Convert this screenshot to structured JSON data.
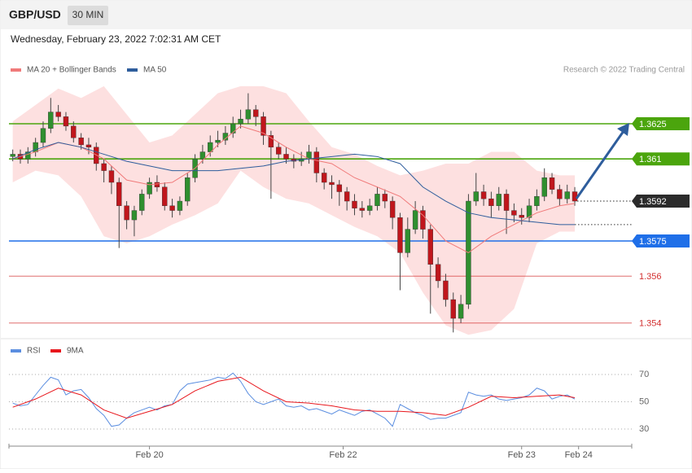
{
  "header": {
    "symbol": "GBP/USD",
    "timeframe": "30 MIN",
    "timestamp": "Wednesday, February 23, 2022 7:02:31 AM CET"
  },
  "chart_data": [
    {
      "type": "candlestick",
      "source": "Research © 2022 Trading Central",
      "xlim": [
        -0.5,
        81.5
      ],
      "ylim": [
        1.3535,
        1.3645
      ],
      "candles": {
        "up_color": "#2f8f2f",
        "down_color": "#c0161c",
        "open": [
          1.3611,
          1.3612,
          1.361,
          1.3613,
          1.3617,
          1.3623,
          1.363,
          1.3628,
          1.3624,
          1.3619,
          1.3616,
          1.3615,
          1.3608,
          1.3605,
          1.36,
          1.359,
          1.3584,
          1.3588,
          1.3595,
          1.36,
          1.3598,
          1.359,
          1.3588,
          1.3592,
          1.3602,
          1.361,
          1.3613,
          1.3617,
          1.3618,
          1.3621,
          1.3625,
          1.3627,
          1.3631,
          1.3628,
          1.362,
          1.3615,
          1.3612,
          1.361,
          1.3609,
          1.361,
          1.3613,
          1.3604,
          1.36,
          1.3599,
          1.3596,
          1.3592,
          1.3589,
          1.3588,
          1.359,
          1.3595,
          1.3592,
          1.3585,
          1.357,
          1.358,
          1.3588,
          1.358,
          1.3565,
          1.3558,
          1.355,
          1.3542,
          1.3548,
          1.3592,
          1.3596,
          1.3593,
          1.359,
          1.3595,
          1.3588,
          1.3586,
          1.3585,
          1.359,
          1.3594,
          1.3602,
          1.3597,
          1.3593,
          1.3596
        ],
        "high": [
          1.3614,
          1.3614,
          1.3615,
          1.3619,
          1.3626,
          1.3636,
          1.3633,
          1.363,
          1.3626,
          1.3621,
          1.3619,
          1.3617,
          1.361,
          1.3607,
          1.3602,
          1.3592,
          1.359,
          1.3597,
          1.3602,
          1.3603,
          1.36,
          1.3593,
          1.3594,
          1.3604,
          1.3612,
          1.3616,
          1.362,
          1.3622,
          1.3624,
          1.3628,
          1.3631,
          1.3638,
          1.3633,
          1.363,
          1.3622,
          1.3617,
          1.3615,
          1.3612,
          1.3613,
          1.3616,
          1.3615,
          1.3606,
          1.3603,
          1.3601,
          1.3598,
          1.3595,
          1.3592,
          1.3593,
          1.3598,
          1.3597,
          1.3594,
          1.3587,
          1.3585,
          1.3592,
          1.359,
          1.3582,
          1.3568,
          1.3561,
          1.3553,
          1.3552,
          1.3595,
          1.3604,
          1.3599,
          1.3596,
          1.3598,
          1.3597,
          1.3591,
          1.3589,
          1.3593,
          1.3597,
          1.3606,
          1.3604,
          1.3599,
          1.3599,
          1.3598
        ],
        "low": [
          1.3609,
          1.3608,
          1.3608,
          1.3611,
          1.3615,
          1.3621,
          1.3626,
          1.3622,
          1.3617,
          1.3614,
          1.3612,
          1.3605,
          1.36,
          1.3595,
          1.3572,
          1.358,
          1.3577,
          1.3586,
          1.3593,
          1.3596,
          1.3588,
          1.3585,
          1.3586,
          1.359,
          1.36,
          1.3608,
          1.3611,
          1.3615,
          1.3616,
          1.3619,
          1.3623,
          1.3625,
          1.3624,
          1.3616,
          1.3593,
          1.361,
          1.3608,
          1.3606,
          1.3607,
          1.3608,
          1.36,
          1.3597,
          1.3593,
          1.359,
          1.3588,
          1.3586,
          1.3585,
          1.3586,
          1.3588,
          1.3589,
          1.358,
          1.3554,
          1.3568,
          1.3578,
          1.3576,
          1.3544,
          1.3555,
          1.3547,
          1.3536,
          1.354,
          1.3546,
          1.359,
          1.359,
          1.3585,
          1.3588,
          1.3578,
          1.3583,
          1.3582,
          1.3583,
          1.3588,
          1.3592,
          1.3595,
          1.359,
          1.3591,
          1.359
        ],
        "close": [
          1.3612,
          1.361,
          1.3613,
          1.3617,
          1.3623,
          1.363,
          1.3628,
          1.3624,
          1.3619,
          1.3616,
          1.3615,
          1.3608,
          1.3605,
          1.36,
          1.359,
          1.3584,
          1.3588,
          1.3595,
          1.36,
          1.3598,
          1.359,
          1.3588,
          1.3592,
          1.3602,
          1.361,
          1.3613,
          1.3617,
          1.3618,
          1.3621,
          1.3625,
          1.3627,
          1.3631,
          1.3628,
          1.362,
          1.3615,
          1.3612,
          1.361,
          1.3609,
          1.361,
          1.3613,
          1.3604,
          1.36,
          1.3599,
          1.3596,
          1.3592,
          1.3589,
          1.3588,
          1.359,
          1.3595,
          1.3592,
          1.3585,
          1.357,
          1.358,
          1.3588,
          1.358,
          1.3565,
          1.3558,
          1.355,
          1.3542,
          1.3548,
          1.3592,
          1.3596,
          1.3593,
          1.359,
          1.3595,
          1.3588,
          1.3586,
          1.3585,
          1.359,
          1.3594,
          1.3602,
          1.3597,
          1.3593,
          1.3596,
          1.3592
        ]
      },
      "indicator_x": [
        0,
        3,
        6,
        9,
        12,
        15,
        18,
        21,
        24,
        27,
        30,
        33,
        36,
        39,
        42,
        45,
        48,
        51,
        54,
        57,
        60,
        63,
        66,
        69,
        72,
        74
      ],
      "series": [
        {
          "name": "MA 20 + Bollinger Bands",
          "color": "#f07a7a",
          "band_color": "#fde0e0",
          "values": [
            1.361,
            1.3613,
            1.3617,
            1.3615,
            1.361,
            1.3601,
            1.3599,
            1.36,
            1.3606,
            1.3616,
            1.3624,
            1.3621,
            1.3615,
            1.361,
            1.3608,
            1.3602,
            1.3598,
            1.3594,
            1.3586,
            1.3575,
            1.357,
            1.3577,
            1.3582,
            1.3587,
            1.359,
            1.3591
          ],
          "upper": [
            1.3626,
            1.3633,
            1.364,
            1.3636,
            1.3641,
            1.3629,
            1.3617,
            1.362,
            1.3629,
            1.3638,
            1.3641,
            1.3641,
            1.3638,
            1.3626,
            1.3615,
            1.3612,
            1.3607,
            1.3603,
            1.3605,
            1.3608,
            1.3608,
            1.3613,
            1.3613,
            1.3605,
            1.3603,
            1.3603
          ],
          "lower": [
            1.36,
            1.3605,
            1.3603,
            1.3594,
            1.3577,
            1.3574,
            1.3577,
            1.3582,
            1.3586,
            1.3591,
            1.3605,
            1.3598,
            1.3593,
            1.3591,
            1.3586,
            1.3581,
            1.3577,
            1.357,
            1.3553,
            1.3539,
            1.3535,
            1.3537,
            1.3546,
            1.3574,
            1.3579,
            1.3579
          ]
        },
        {
          "name": "MA 50",
          "color": "#2e5d9c",
          "values": [
            1.361,
            1.3614,
            1.3617,
            1.3615,
            1.3612,
            1.3609,
            1.3607,
            1.3605,
            1.3605,
            1.3605,
            1.3606,
            1.3607,
            1.3609,
            1.361,
            1.3611,
            1.3612,
            1.3611,
            1.3608,
            1.3598,
            1.3592,
            1.3587,
            1.3585,
            1.3584,
            1.3583,
            1.3582,
            1.3582
          ]
        }
      ],
      "levels": [
        {
          "price": 1.3625,
          "color": "#4ba50d",
          "line": "solid",
          "label_style": "box"
        },
        {
          "price": 1.361,
          "color": "#4ba50d",
          "line": "solid",
          "label_style": "box"
        },
        {
          "price": 1.3592,
          "color": "#2b2b2b",
          "line": "dotted",
          "label_style": "box"
        },
        {
          "price": 1.3575,
          "color": "#1f6fe8",
          "line": "solid",
          "label_style": "box"
        },
        {
          "price": 1.356,
          "color": "#d32f2f",
          "line": "thin",
          "label_style": "text"
        },
        {
          "price": 1.354,
          "color": "#d32f2f",
          "line": "thin",
          "label_style": "text"
        }
      ]
    },
    {
      "type": "line",
      "xlim": [
        -0.5,
        81.5
      ],
      "ylim": [
        20,
        80
      ],
      "yticks": [
        30,
        50,
        70
      ],
      "grid": "dotted",
      "xticks": [
        {
          "value": 18,
          "label": "Feb 20"
        },
        {
          "value": 43.5,
          "label": "Feb 22"
        },
        {
          "value": 67,
          "label": "Feb 23"
        },
        {
          "value": 74.5,
          "label": "Feb 24"
        }
      ],
      "series": [
        {
          "name": "RSI",
          "color": "#5b8ee0",
          "x": [
            0,
            1,
            2,
            3,
            4,
            5,
            6,
            7,
            8,
            9,
            10,
            11,
            12,
            13,
            14,
            15,
            16,
            17,
            18,
            19,
            20,
            21,
            22,
            23,
            24,
            25,
            26,
            27,
            28,
            29,
            30,
            31,
            32,
            33,
            34,
            35,
            36,
            37,
            38,
            39,
            40,
            41,
            42,
            43,
            44,
            45,
            46,
            47,
            48,
            49,
            50,
            51,
            52,
            53,
            54,
            55,
            56,
            57,
            58,
            59,
            60,
            61,
            62,
            63,
            64,
            65,
            66,
            67,
            68,
            69,
            70,
            71,
            72,
            73,
            74
          ],
          "values": [
            49,
            47,
            48,
            55,
            62,
            68,
            66,
            55,
            58,
            59,
            53,
            45,
            40,
            32,
            33,
            38,
            42,
            44,
            46,
            44,
            47,
            48,
            58,
            63,
            64,
            65,
            66,
            68,
            67,
            71,
            65,
            56,
            50,
            48,
            50,
            52,
            47,
            46,
            47,
            44,
            45,
            43,
            41,
            44,
            42,
            40,
            43,
            44,
            41,
            38,
            32,
            48,
            45,
            42,
            40,
            37,
            38,
            38,
            40,
            42,
            57,
            55,
            54,
            55,
            52,
            51,
            52,
            53,
            55,
            60,
            58,
            52,
            54,
            55,
            52
          ]
        },
        {
          "name": "9MA",
          "color": "#e8161c",
          "x": [
            0,
            3,
            6,
            9,
            12,
            15,
            18,
            21,
            24,
            27,
            30,
            33,
            36,
            39,
            42,
            45,
            48,
            51,
            54,
            57,
            60,
            63,
            66,
            69,
            72,
            74
          ],
          "values": [
            46,
            52,
            60,
            55,
            44,
            38,
            43,
            48,
            58,
            65,
            68,
            58,
            50,
            49,
            47,
            44,
            43,
            43,
            42,
            40,
            46,
            54,
            53,
            54,
            55,
            53
          ]
        }
      ]
    }
  ]
}
